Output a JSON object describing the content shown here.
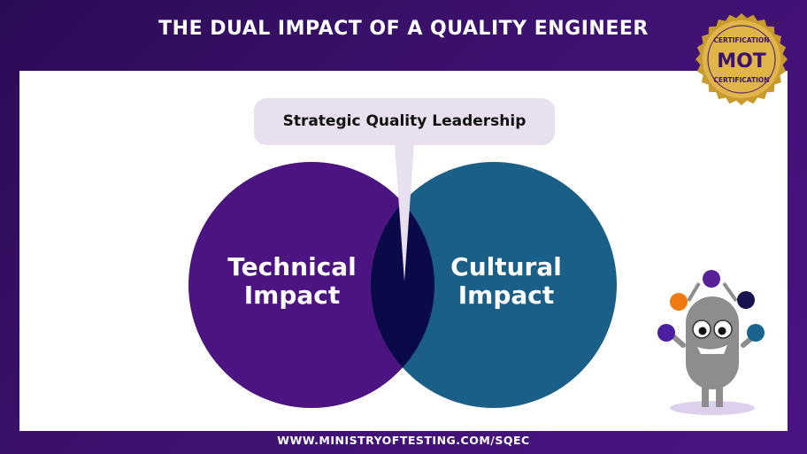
{
  "header": {
    "title": "THE DUAL IMPACT OF A QUALITY ENGINEER"
  },
  "badge": {
    "text_top": "CERTIFICATION",
    "logo": "MOT",
    "text_bottom": "CERTIFICATION",
    "color": "#d4a437"
  },
  "diagram": {
    "callout": "Strategic Quality Leadership",
    "left": {
      "label_line1": "Technical",
      "label_line2": "Impact",
      "color": "#4c1480"
    },
    "right": {
      "label_line1": "Cultural",
      "label_line2": "Impact",
      "color": "#1a5f88"
    },
    "overlap_color": "#0a0a48",
    "callout_color": "#e8e0ef"
  },
  "footer": {
    "url": "WWW.MINISTRYOFTESTING.COM/SQEC"
  }
}
